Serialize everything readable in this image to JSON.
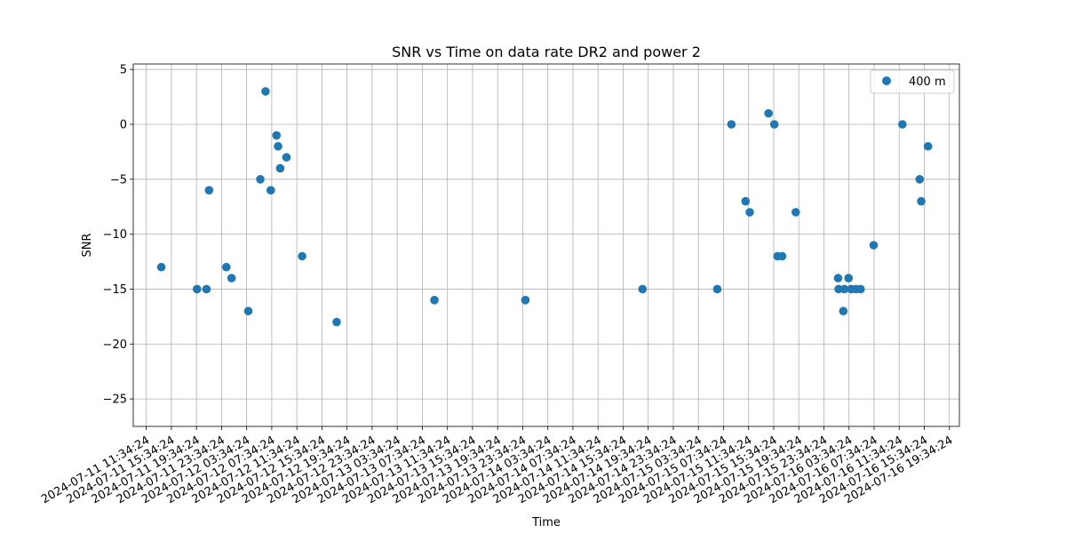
{
  "chart_data": {
    "type": "scatter",
    "title": "SNR vs Time on data rate DR2 and power 2",
    "xlabel": "Time",
    "ylabel": "SNR",
    "ylim": [
      -27.5,
      5.5
    ],
    "xlim": [
      "2024-07-11 09:30:00",
      "2024-07-16 21:10:00"
    ],
    "yticks": [
      5,
      0,
      -5,
      -10,
      -15,
      -20,
      -25
    ],
    "xticks": [
      "2024-07-11 11:34:24",
      "2024-07-11 15:34:24",
      "2024-07-11 19:34:24",
      "2024-07-11 23:34:24",
      "2024-07-12 03:34:24",
      "2024-07-12 07:34:24",
      "2024-07-12 11:34:24",
      "2024-07-12 15:34:24",
      "2024-07-12 19:34:24",
      "2024-07-12 23:34:24",
      "2024-07-13 03:34:24",
      "2024-07-13 07:34:24",
      "2024-07-13 11:34:24",
      "2024-07-13 15:34:24",
      "2024-07-13 19:34:24",
      "2024-07-13 23:34:24",
      "2024-07-14 03:34:24",
      "2024-07-14 07:34:24",
      "2024-07-14 11:34:24",
      "2024-07-14 15:34:24",
      "2024-07-14 19:34:24",
      "2024-07-14 23:34:24",
      "2024-07-15 03:34:24",
      "2024-07-15 07:34:24",
      "2024-07-15 11:34:24",
      "2024-07-15 15:34:24",
      "2024-07-15 19:34:24",
      "2024-07-15 23:34:24",
      "2024-07-16 03:34:24",
      "2024-07-16 07:34:24",
      "2024-07-16 11:34:24",
      "2024-07-16 15:34:24",
      "2024-07-16 19:34:24"
    ],
    "grid": true,
    "legend": {
      "placement": "top-right",
      "entries": [
        "400 m"
      ]
    },
    "series": [
      {
        "name": "400 m",
        "color": "#1f77b4",
        "marker": "circle",
        "points": [
          {
            "x": "2024-07-11 13:58",
            "y": -13
          },
          {
            "x": "2024-07-11 19:40",
            "y": -15
          },
          {
            "x": "2024-07-11 21:10",
            "y": -15
          },
          {
            "x": "2024-07-11 21:35",
            "y": -6
          },
          {
            "x": "2024-07-12 00:20",
            "y": -13
          },
          {
            "x": "2024-07-12 01:10",
            "y": -14
          },
          {
            "x": "2024-07-12 03:50",
            "y": -17
          },
          {
            "x": "2024-07-12 05:45",
            "y": -5
          },
          {
            "x": "2024-07-12 06:35",
            "y": 3
          },
          {
            "x": "2024-07-12 07:25",
            "y": -6
          },
          {
            "x": "2024-07-12 08:20",
            "y": -1
          },
          {
            "x": "2024-07-12 08:35",
            "y": -2
          },
          {
            "x": "2024-07-12 08:55",
            "y": -4
          },
          {
            "x": "2024-07-12 09:55",
            "y": -3
          },
          {
            "x": "2024-07-12 12:25",
            "y": -12
          },
          {
            "x": "2024-07-12 17:55",
            "y": -18
          },
          {
            "x": "2024-07-13 09:30",
            "y": -16
          },
          {
            "x": "2024-07-14 00:00",
            "y": -16
          },
          {
            "x": "2024-07-14 18:40",
            "y": -15
          },
          {
            "x": "2024-07-15 06:35",
            "y": -15
          },
          {
            "x": "2024-07-15 08:50",
            "y": 0
          },
          {
            "x": "2024-07-15 11:05",
            "y": -7
          },
          {
            "x": "2024-07-15 11:45",
            "y": -8
          },
          {
            "x": "2024-07-15 14:45",
            "y": 1
          },
          {
            "x": "2024-07-15 15:40",
            "y": 0
          },
          {
            "x": "2024-07-15 16:10",
            "y": -12
          },
          {
            "x": "2024-07-15 16:55",
            "y": -12
          },
          {
            "x": "2024-07-15 19:05",
            "y": -8
          },
          {
            "x": "2024-07-16 01:50",
            "y": -14
          },
          {
            "x": "2024-07-16 01:55",
            "y": -15
          },
          {
            "x": "2024-07-16 02:50",
            "y": -15
          },
          {
            "x": "2024-07-16 02:40",
            "y": -17
          },
          {
            "x": "2024-07-16 03:30",
            "y": -14
          },
          {
            "x": "2024-07-16 03:55",
            "y": -15
          },
          {
            "x": "2024-07-16 04:40",
            "y": -15
          },
          {
            "x": "2024-07-16 05:25",
            "y": -15
          },
          {
            "x": "2024-07-16 07:30",
            "y": -11
          },
          {
            "x": "2024-07-16 12:05",
            "y": 0
          },
          {
            "x": "2024-07-16 14:50",
            "y": -5
          },
          {
            "x": "2024-07-16 15:05",
            "y": -7
          },
          {
            "x": "2024-07-16 16:10",
            "y": -2
          }
        ]
      }
    ]
  }
}
